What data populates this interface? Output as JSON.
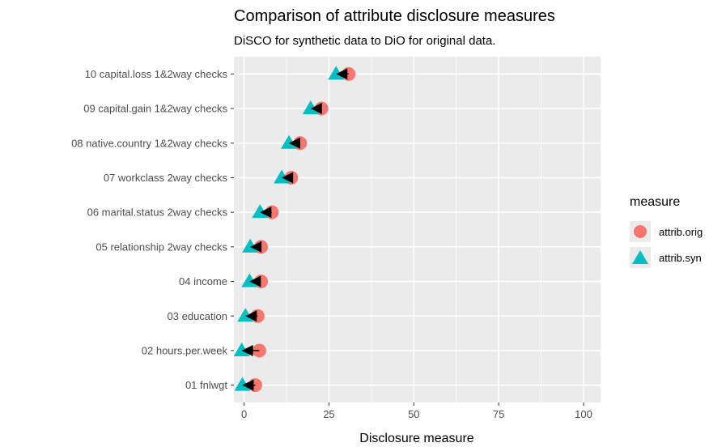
{
  "chart_data": {
    "type": "scatter",
    "title": "Comparison of attribute disclosure measures",
    "subtitle": "DiSCO for synthetic data  to DiO for original data.",
    "xlabel": "Disclosure measure",
    "ylabel": "",
    "xlim": [
      -3,
      105
    ],
    "x_ticks": [
      0,
      25,
      50,
      75,
      100
    ],
    "grid": true,
    "legend_position": "right",
    "legend_title": "measure",
    "categories": [
      "01 fnlwgt",
      "02 hours.per.week",
      "03 education",
      "04 income",
      "05 relationship 2way checks",
      "06 marital.status 2way checks",
      "07 workclass 2way checks",
      "08 native.country 1&2way checks",
      "09 capital.gain 1&2way checks",
      "10 capital.loss 1&2way checks"
    ],
    "series": [
      {
        "name": "attrib.orig",
        "marker": "circle",
        "color": "#F8766D",
        "values": [
          3.3,
          4.5,
          4.0,
          5.0,
          5.0,
          8.2,
          13.9,
          16.5,
          22.8,
          30.8
        ]
      },
      {
        "name": "attrib.syn",
        "marker": "triangle",
        "color": "#00BFC4",
        "values": [
          -0.5,
          -0.7,
          0.4,
          1.6,
          1.8,
          4.7,
          11.1,
          13.2,
          19.6,
          27.1
        ]
      }
    ],
    "arrows": {
      "color": "#000000",
      "description": "arrow from attrib.orig toward attrib.syn"
    },
    "colors": {
      "panel_background": "#EBEBEB",
      "gridline": "#FFFFFF",
      "tick_text": "#4D4D4D"
    }
  }
}
